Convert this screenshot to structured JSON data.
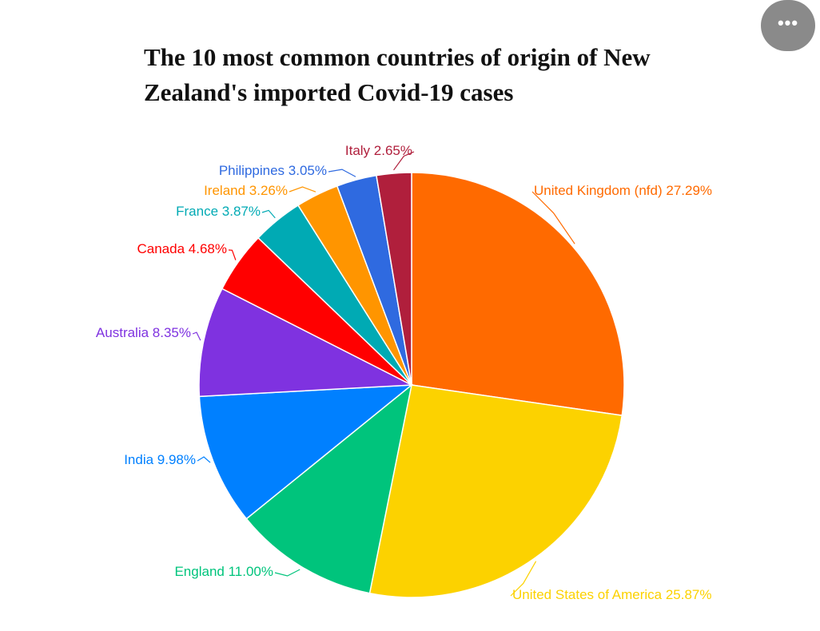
{
  "chart_data": {
    "type": "pie",
    "title": "The 10 most common countries of origin of New Zealand's imported Covid-19 cases",
    "categories": [
      "United Kingdom (nfd)",
      "United States of America",
      "England",
      "India",
      "Australia",
      "Canada",
      "France",
      "Ireland",
      "Philippines",
      "Italy"
    ],
    "values": [
      27.29,
      25.87,
      11.0,
      9.98,
      8.35,
      4.68,
      3.87,
      3.26,
      3.05,
      2.65
    ],
    "value_labels": [
      "27.29%",
      "25.87%",
      "11.00%",
      "9.98%",
      "8.35%",
      "4.68%",
      "3.87%",
      "3.26%",
      "3.05%",
      "2.65%"
    ],
    "colors": [
      "#ff6a00",
      "#fcd200",
      "#00c47c",
      "#0080ff",
      "#7f32e0",
      "#ff0000",
      "#00aab4",
      "#ff9500",
      "#2f6ae0",
      "#b01f3c"
    ]
  }
}
